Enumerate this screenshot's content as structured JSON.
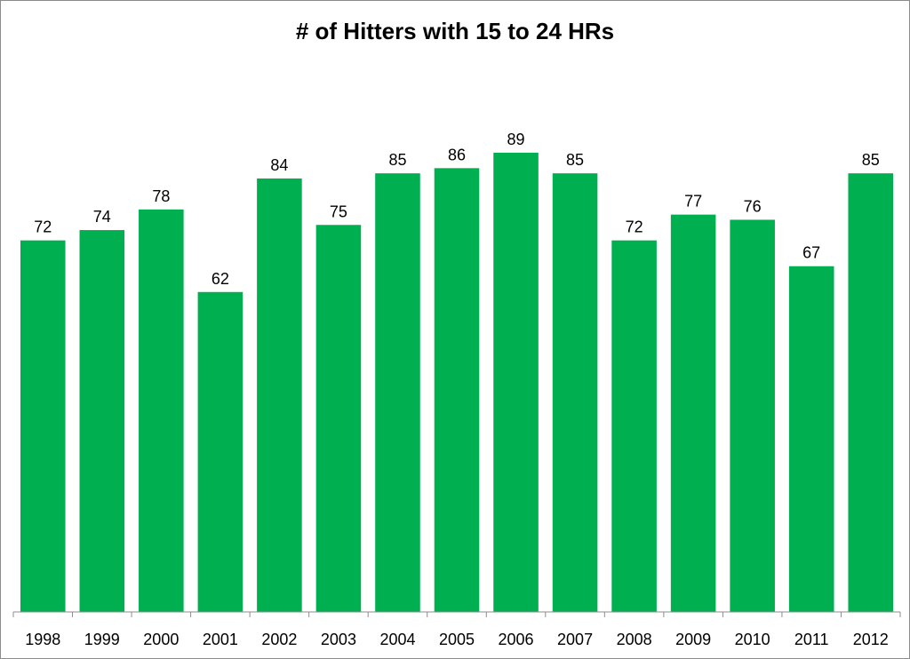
{
  "chart_data": {
    "type": "bar",
    "title": "# of Hitters with 15 to 24 HRs",
    "xlabel": "",
    "ylabel": "",
    "categories": [
      "1998",
      "1999",
      "2000",
      "2001",
      "2002",
      "2003",
      "2004",
      "2005",
      "2006",
      "2007",
      "2008",
      "2009",
      "2010",
      "2011",
      "2012"
    ],
    "values": [
      72,
      74,
      78,
      62,
      84,
      75,
      85,
      86,
      89,
      85,
      72,
      77,
      76,
      67,
      85
    ],
    "ylim": [
      0,
      100
    ],
    "grid": false,
    "legend": "none",
    "data_labels": true,
    "bar_color": "#00b050"
  }
}
